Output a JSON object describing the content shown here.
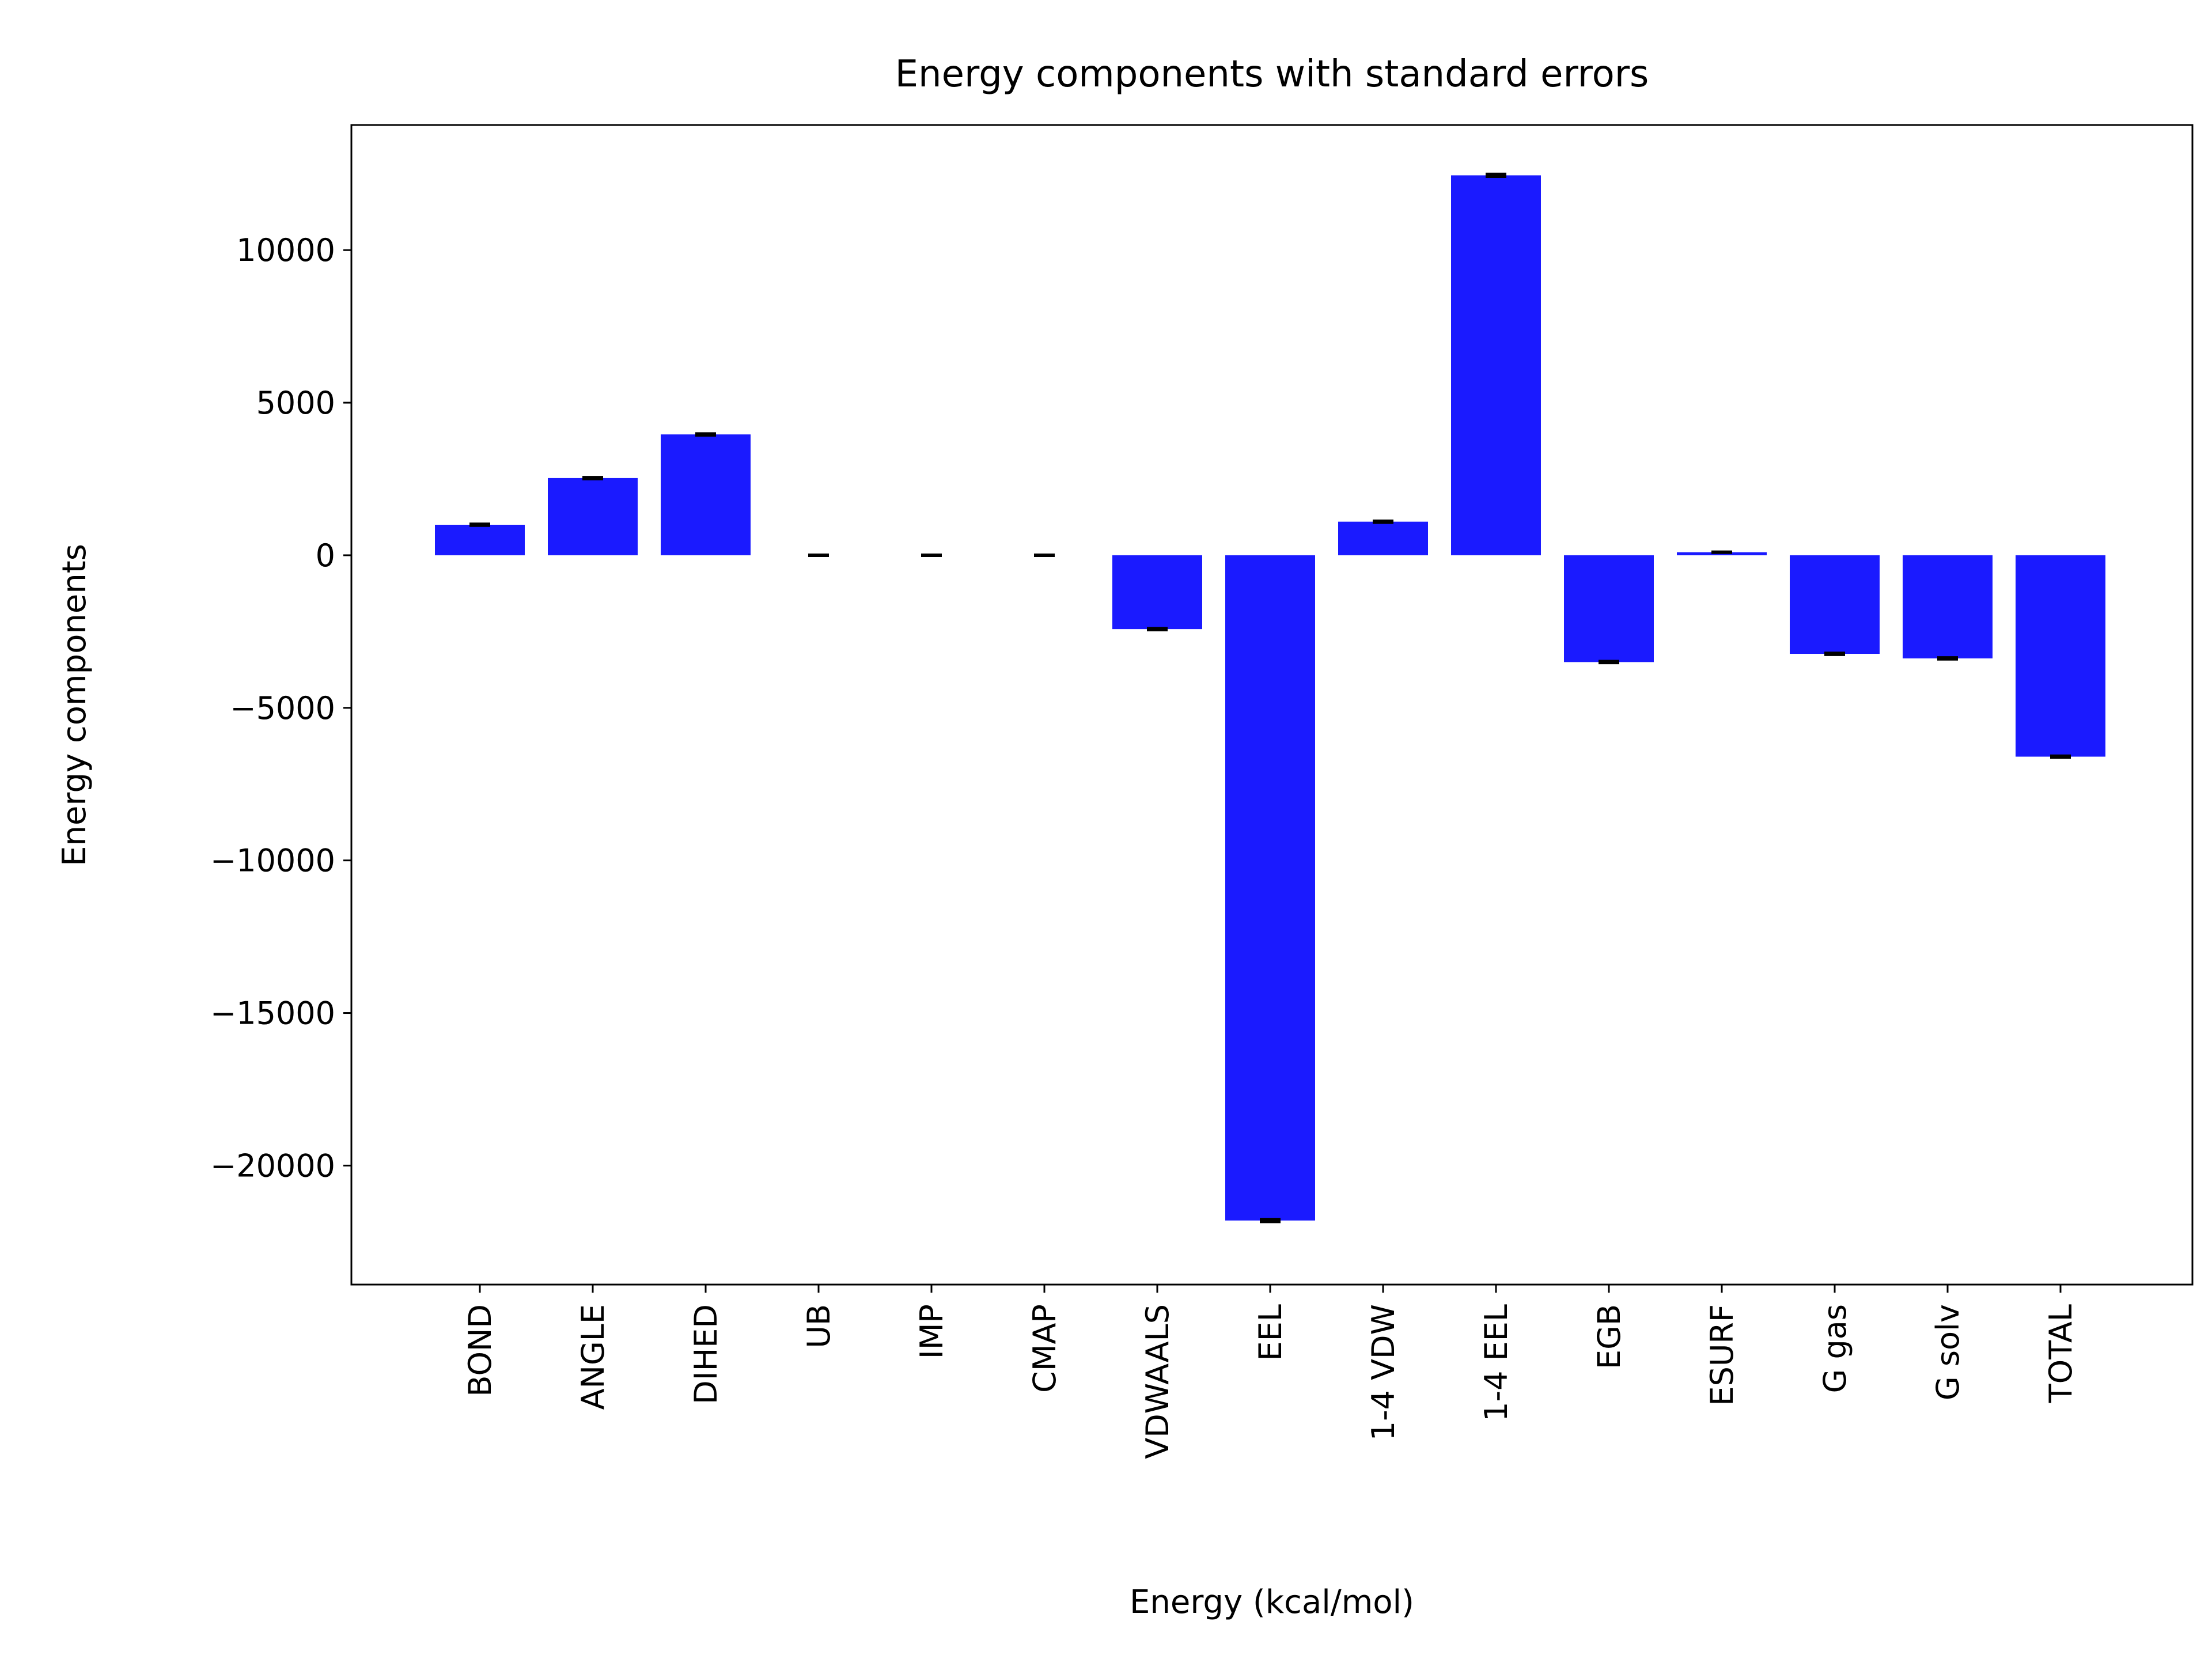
{
  "chart_data": {
    "type": "bar",
    "title": "Energy components with standard errors",
    "xlabel": "Energy (kcal/mol)",
    "ylabel": "Energy components",
    "categories": [
      "BOND",
      "ANGLE",
      "DIHED",
      "UB",
      "IMP",
      "CMAP",
      "VDWAALS",
      "EEL",
      "1-4 VDW",
      "1-4 EEL",
      "EGB",
      "ESURF",
      "G gas",
      "G solv",
      "TOTAL"
    ],
    "values": [
      1000,
      2530,
      3960,
      0,
      0,
      0,
      -2420,
      -21800,
      1100,
      12450,
      -3500,
      100,
      -3230,
      -3380,
      -6600
    ],
    "errors": [
      25,
      25,
      25,
      10,
      10,
      10,
      25,
      40,
      25,
      40,
      25,
      10,
      25,
      25,
      25
    ],
    "ylim": [
      -23900,
      14100
    ],
    "yticks": [
      -20000,
      -15000,
      -10000,
      -5000,
      0,
      5000,
      10000
    ],
    "ytick_labels": [
      "−20000",
      "−15000",
      "−10000",
      "−5000",
      "0",
      "5000",
      "10000"
    ],
    "bar_color": "#1a1aff",
    "error_color": "#000000",
    "grid": false,
    "legend": "none"
  }
}
